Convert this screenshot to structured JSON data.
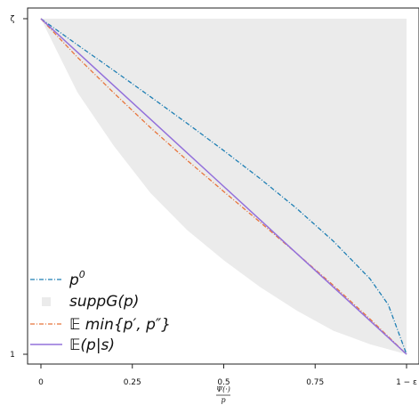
{
  "chart_data": {
    "type": "line",
    "title": "",
    "x_axis": {
      "range": [
        0,
        1
      ],
      "ticks": [
        {
          "value": 0,
          "label": "0"
        },
        {
          "value": 0.25,
          "label": "0.25"
        },
        {
          "value": 0.5,
          "label": "0.5"
        },
        {
          "value": 0.75,
          "label": "0.75"
        },
        {
          "value": 1,
          "label": "1 − ε"
        }
      ],
      "label_num": "Ψ(·)",
      "label_den": "p"
    },
    "y_axis": {
      "range": [
        0,
        1
      ],
      "ticks": [
        {
          "value": 1,
          "label": "ζ"
        },
        {
          "value": 0,
          "label": "1"
        }
      ]
    },
    "grid": false,
    "legend_position": "bottom-left",
    "series": [
      {
        "key": "p0",
        "legend_base": "p",
        "legend_sup": "0",
        "color": "#1f7fb4",
        "style": "dash-dot",
        "x": [
          0,
          0.1,
          0.2,
          0.3,
          0.4,
          0.5,
          0.6,
          0.7,
          0.8,
          0.9,
          0.95,
          1.0
        ],
        "y": [
          1.0,
          0.922,
          0.845,
          0.767,
          0.688,
          0.607,
          0.523,
          0.434,
          0.337,
          0.225,
          0.148,
          0.0
        ]
      },
      {
        "key": "support",
        "legend_label": "suppG(p)",
        "color": "#ebebeb",
        "style": "band",
        "x": [
          0,
          0.1,
          0.2,
          0.3,
          0.4,
          0.5,
          0.6,
          0.7,
          0.8,
          0.9,
          1.0
        ],
        "lower": [
          1.0,
          0.78,
          0.62,
          0.48,
          0.37,
          0.28,
          0.2,
          0.13,
          0.07,
          0.03,
          0.0
        ],
        "upper": [
          1.0,
          1.0,
          1.0,
          1.0,
          1.0,
          1.0,
          1.0,
          1.0,
          1.0,
          1.0,
          1.0
        ]
      },
      {
        "key": "emin",
        "legend_label": "𝔼 min{p′, p″}",
        "color": "#e8743b",
        "style": "dash-dot",
        "x": [
          0,
          0.1,
          0.2,
          0.3,
          0.4,
          0.5,
          0.6,
          0.7,
          0.8,
          0.9,
          1.0
        ],
        "y": [
          1.0,
          0.885,
          0.778,
          0.675,
          0.578,
          0.485,
          0.393,
          0.3,
          0.205,
          0.105,
          0.0
        ]
      },
      {
        "key": "ecs",
        "legend_label": "𝔼(p|s)",
        "color": "#9370db",
        "style": "solid",
        "x": [
          0,
          0.1,
          0.2,
          0.3,
          0.4,
          0.5,
          0.6,
          0.7,
          0.8,
          0.9,
          1.0
        ],
        "y": [
          1.0,
          0.9,
          0.8,
          0.7,
          0.6,
          0.5,
          0.4,
          0.3,
          0.2,
          0.1,
          0.0
        ]
      }
    ]
  }
}
